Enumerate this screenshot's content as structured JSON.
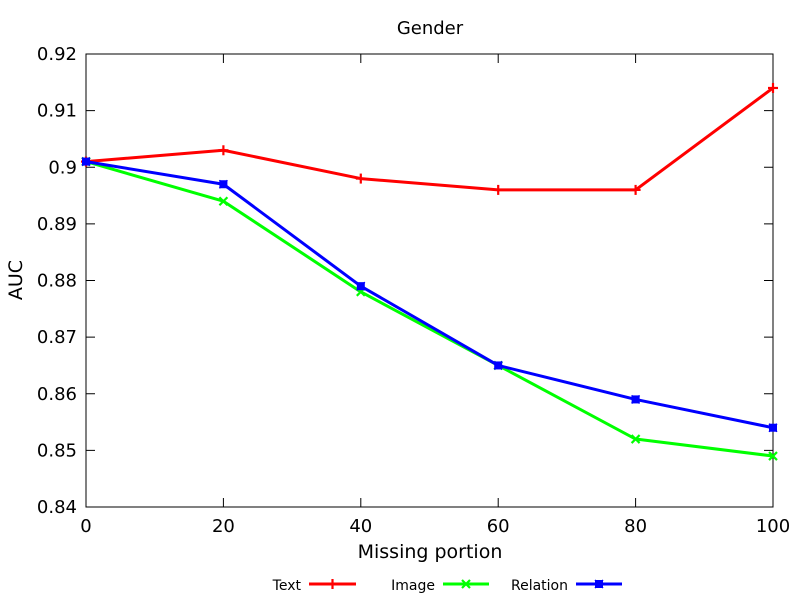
{
  "chart_data": {
    "type": "line",
    "title": "Gender",
    "xlabel": "Missing portion",
    "ylabel": "AUC",
    "x": [
      0,
      20,
      40,
      60,
      80,
      100
    ],
    "xlim": [
      0,
      100
    ],
    "ylim": [
      0.84,
      0.92
    ],
    "xticks": [
      0,
      20,
      40,
      60,
      80,
      100
    ],
    "yticks": [
      0.84,
      0.85,
      0.86,
      0.87,
      0.88,
      0.89,
      0.9,
      0.91,
      0.92
    ],
    "xtick_labels": [
      "0",
      "20",
      "40",
      "60",
      "80",
      "100"
    ],
    "ytick_labels": [
      "0.84",
      "0.85",
      "0.86",
      "0.87",
      "0.88",
      "0.89",
      "0.9",
      "0.91",
      "0.92"
    ],
    "grid": false,
    "legend_position": "bottom",
    "series": [
      {
        "name": "Text",
        "color": "#ff0000",
        "marker": "plus",
        "values": [
          0.901,
          0.903,
          0.898,
          0.896,
          0.896,
          0.914
        ]
      },
      {
        "name": "Image",
        "color": "#00ff00",
        "marker": "cross",
        "values": [
          0.901,
          0.894,
          0.878,
          0.865,
          0.852,
          0.849
        ]
      },
      {
        "name": "Relation",
        "color": "#0000ff",
        "marker": "square-x",
        "values": [
          0.901,
          0.897,
          0.879,
          0.865,
          0.859,
          0.854
        ]
      }
    ]
  }
}
